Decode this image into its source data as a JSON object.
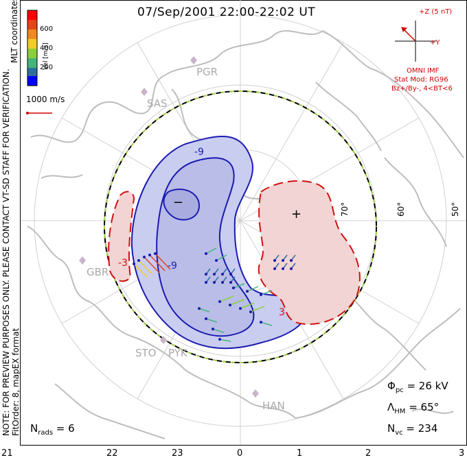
{
  "title": "07/Sep/2001 22:00-22:02 UT",
  "coordinates_label": "MLT coordinates",
  "colorbar": {
    "label": "Vel [m/s]",
    "ticks": [
      "600",
      "400",
      "200"
    ],
    "colors": [
      "#0000ff",
      "#2f6f9f",
      "#45b47a",
      "#8bd03b",
      "#f2ce22",
      "#f08a1d",
      "#e8421a",
      "#ff0000"
    ]
  },
  "velocity_scale": "1000 m/s",
  "imf": {
    "z_label": "+Z (5 nT)",
    "y_label": "+Y",
    "source": "OMNI IMF",
    "stat_mod": "Stat Mod: RG96",
    "condition": "Bz+/By-, 4<BT<6"
  },
  "latitude_labels": [
    "70°",
    "60°",
    "50°"
  ],
  "sites": [
    "PGR",
    "SAS",
    "GBR",
    "STO",
    "PYK",
    "HAN"
  ],
  "contour_labels": [
    "-9",
    "-9",
    "-3",
    "3"
  ],
  "extrema": {
    "min": "−",
    "max": "+"
  },
  "stats": {
    "phi_pc_sym": "Φ",
    "phi_pc_sub": "pc",
    "phi_pc_val": " = 26 kV",
    "lambda_hm_sym": "Λ",
    "lambda_hm_sub": "HM",
    "lambda_hm_val": " = 65°",
    "n_vc_sym": "N",
    "n_vc_sub": "vc",
    "n_vc_val": " = 234",
    "n_rads_sym": "N",
    "n_rads_sub": "rads",
    "n_rads_val": " = 6"
  },
  "notes": {
    "preview": "NOTE: FOR PREVIEW PURPOSES ONLY. PLEASE CONTACT VT-SD STAFF FOR VERIFICATION.",
    "fit": "FitOrder: 8, mapEX format"
  },
  "mlt_ticks": [
    "21",
    "22",
    "23",
    "0",
    "1",
    "2",
    "3"
  ],
  "colors": {
    "negative_fill": "#c9cdf0",
    "negative_line": "#1a1ab0",
    "positive_fill": "#f2d4d4",
    "positive_line": "#d01010",
    "boundary_green": "#9acd32",
    "coast": "#c0c0c0",
    "grid": "#d0d0d0"
  }
}
